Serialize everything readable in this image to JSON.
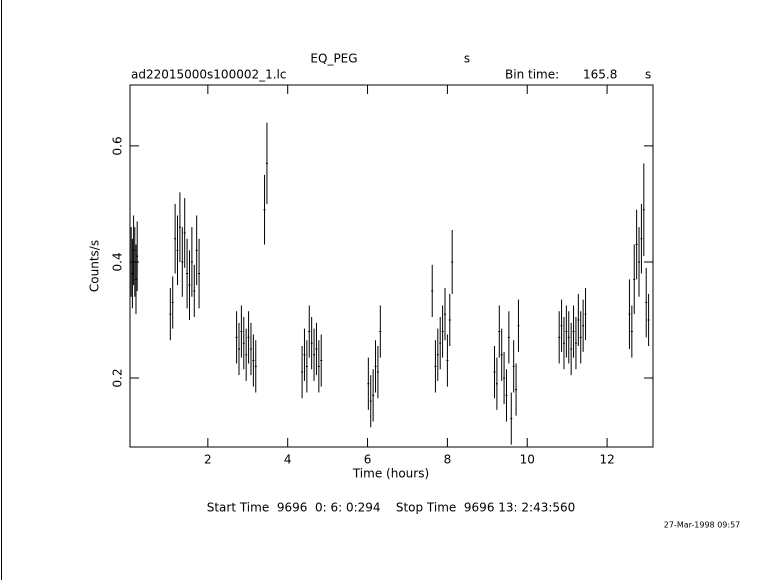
{
  "chart_data": {
    "type": "scatter",
    "title": "EQ_PEG",
    "title_unit": "s",
    "file": "ad22015000s100002_1.lc",
    "bin_time_label": "Bin time:",
    "bin_time": 165.8,
    "bin_time_unit": "s",
    "x_label": "Time (hours)",
    "y_label": "Counts/s",
    "time_range": "Start Time  9696  0: 6: 0:294    Stop Time  9696 13: 2:43:560",
    "date": "27-Mar-1998 09:57",
    "color": "#000000",
    "xlim": [
      0.05,
      13.15
    ],
    "ylim": [
      0.081,
      0.705
    ],
    "xticks": [
      2,
      4,
      6,
      8,
      10,
      12
    ],
    "yticks": [
      0.2,
      0.4,
      0.6
    ],
    "x": [
      0.08,
      0.11,
      0.14,
      0.17,
      0.2,
      0.23,
      1.06,
      1.12,
      1.18,
      1.24,
      1.3,
      1.36,
      1.42,
      1.48,
      1.54,
      1.6,
      1.66,
      1.72,
      1.78,
      2.72,
      2.78,
      2.84,
      2.9,
      2.96,
      3.02,
      3.08,
      3.14,
      3.2,
      3.42,
      3.48,
      4.36,
      4.42,
      4.48,
      4.54,
      4.6,
      4.66,
      4.72,
      4.78,
      4.84,
      6.02,
      6.08,
      6.14,
      6.2,
      6.26,
      6.32,
      7.62,
      7.7,
      7.76,
      7.82,
      7.88,
      7.94,
      8.0,
      8.06,
      8.12,
      9.18,
      9.24,
      9.3,
      9.36,
      9.42,
      9.48,
      9.54,
      9.6,
      9.66,
      9.72,
      9.78,
      10.8,
      10.86,
      10.92,
      10.98,
      11.04,
      11.1,
      11.16,
      11.22,
      11.28,
      11.34,
      11.4,
      11.46,
      12.56,
      12.62,
      12.68,
      12.74,
      12.8,
      12.86,
      12.92,
      12.98,
      13.04
    ],
    "values": [
      0.4,
      0.38,
      0.42,
      0.4,
      0.37,
      0.41,
      0.31,
      0.33,
      0.44,
      0.42,
      0.46,
      0.4,
      0.45,
      0.38,
      0.36,
      0.4,
      0.35,
      0.42,
      0.38,
      0.27,
      0.25,
      0.28,
      0.26,
      0.24,
      0.27,
      0.25,
      0.23,
      0.22,
      0.49,
      0.57,
      0.21,
      0.24,
      0.22,
      0.28,
      0.26,
      0.24,
      0.25,
      0.22,
      0.23,
      0.19,
      0.16,
      0.17,
      0.22,
      0.21,
      0.28,
      0.35,
      0.22,
      0.24,
      0.26,
      0.28,
      0.31,
      0.23,
      0.3,
      0.4,
      0.21,
      0.19,
      0.28,
      0.24,
      0.2,
      0.17,
      0.27,
      0.13,
      0.22,
      0.18,
      0.29,
      0.27,
      0.29,
      0.26,
      0.28,
      0.27,
      0.25,
      0.28,
      0.26,
      0.3,
      0.27,
      0.29,
      0.31,
      0.31,
      0.28,
      0.37,
      0.43,
      0.4,
      0.44,
      0.49,
      0.33,
      0.3
    ],
    "errors": [
      0.06,
      0.06,
      0.06,
      0.06,
      0.06,
      0.06,
      0.045,
      0.045,
      0.06,
      0.06,
      0.06,
      0.06,
      0.06,
      0.06,
      0.06,
      0.06,
      0.045,
      0.06,
      0.06,
      0.045,
      0.045,
      0.045,
      0.045,
      0.045,
      0.045,
      0.045,
      0.045,
      0.045,
      0.06,
      0.07,
      0.045,
      0.045,
      0.045,
      0.045,
      0.045,
      0.045,
      0.045,
      0.045,
      0.045,
      0.045,
      0.045,
      0.045,
      0.045,
      0.045,
      0.045,
      0.045,
      0.045,
      0.045,
      0.045,
      0.045,
      0.045,
      0.045,
      0.045,
      0.055,
      0.045,
      0.045,
      0.045,
      0.045,
      0.045,
      0.045,
      0.045,
      0.045,
      0.045,
      0.045,
      0.045,
      0.045,
      0.045,
      0.045,
      0.045,
      0.045,
      0.045,
      0.045,
      0.045,
      0.045,
      0.045,
      0.045,
      0.045,
      0.06,
      0.045,
      0.06,
      0.06,
      0.06,
      0.06,
      0.08,
      0.06,
      0.045
    ]
  }
}
